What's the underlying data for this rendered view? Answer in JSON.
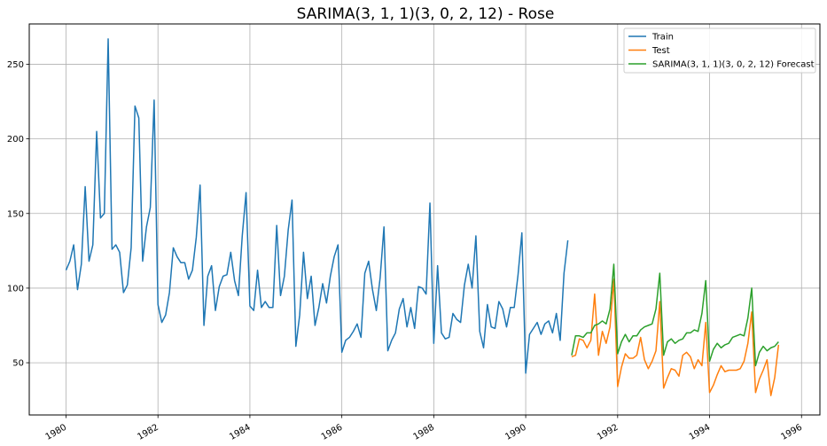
{
  "chart_data": {
    "type": "line",
    "title": "SARIMA(3, 1, 1)(3, 0, 2, 12) - Rose",
    "xlabel": "",
    "ylabel": "",
    "xlim": [
      1979.2,
      1996.4
    ],
    "ylim": [
      15,
      277
    ],
    "grid": true,
    "legend_position": "top-right",
    "x_ticks": [
      1980,
      1982,
      1984,
      1986,
      1988,
      1990,
      1992,
      1994,
      1996
    ],
    "x_tick_labels": [
      "1980",
      "1982",
      "1984",
      "1986",
      "1988",
      "1990",
      "1992",
      "1994",
      "1996"
    ],
    "y_ticks": [
      50,
      100,
      150,
      200,
      250
    ],
    "y_tick_labels": [
      "50",
      "100",
      "150",
      "200",
      "250"
    ],
    "series": [
      {
        "name": "Train",
        "color": "#1f77b4",
        "start_year": 1980,
        "start_month": 1,
        "values": [
          112,
          118,
          129,
          99,
          116,
          168,
          118,
          129,
          205,
          147,
          150,
          267,
          126,
          129,
          124,
          97,
          102,
          127,
          222,
          214,
          118,
          141,
          154,
          226,
          89,
          77,
          82,
          97,
          127,
          121,
          117,
          117,
          106,
          112,
          134,
          169,
          75,
          108,
          115,
          85,
          101,
          108,
          109,
          124,
          105,
          95,
          135,
          164,
          88,
          85,
          112,
          87,
          91,
          87,
          87,
          142,
          95,
          108,
          139,
          159,
          61,
          82,
          124,
          93,
          108,
          75,
          87,
          103,
          90,
          108,
          121,
          129,
          57,
          65,
          67,
          71,
          76,
          67,
          110,
          118,
          99,
          85,
          107,
          141,
          58,
          65,
          70,
          86,
          93,
          74,
          87,
          73,
          101,
          100,
          96,
          157,
          63,
          115,
          70,
          66,
          67,
          83,
          79,
          77,
          102,
          116,
          100,
          135,
          71,
          60,
          89,
          74,
          73,
          91,
          86,
          74,
          87,
          87,
          109,
          137,
          43,
          69,
          73,
          77,
          69,
          76,
          78,
          70,
          83,
          65,
          110,
          132
        ]
      },
      {
        "name": "Test",
        "color": "#ff7f0e",
        "start_year": 1991,
        "start_month": 1,
        "values": [
          54,
          55,
          66,
          65,
          60,
          65,
          96,
          55,
          71,
          63,
          74,
          106,
          34,
          47,
          56,
          53,
          53,
          55,
          67,
          52,
          46,
          51,
          58,
          91,
          33,
          40,
          46,
          45,
          41,
          55,
          57,
          54,
          46,
          52,
          48,
          77,
          30,
          35,
          42,
          48,
          44,
          45,
          45,
          45,
          46,
          51,
          63,
          84,
          30,
          39,
          45,
          52,
          28,
          40,
          62
        ]
      },
      {
        "name": "SARIMA(3, 1, 1)(3, 0, 2, 12) Forecast",
        "color": "#2ca02c",
        "start_year": 1991,
        "start_month": 1,
        "values": [
          55,
          68,
          68,
          67,
          70,
          70,
          75,
          76,
          78,
          76,
          86,
          116,
          56,
          64,
          69,
          64,
          68,
          68,
          72,
          74,
          75,
          76,
          86,
          110,
          55,
          64,
          66,
          63,
          65,
          66,
          70,
          70,
          72,
          71,
          83,
          105,
          51,
          59,
          63,
          60,
          62,
          63,
          67,
          68,
          69,
          68,
          80,
          100,
          48,
          57,
          61,
          58,
          60,
          61,
          64
        ]
      }
    ]
  }
}
